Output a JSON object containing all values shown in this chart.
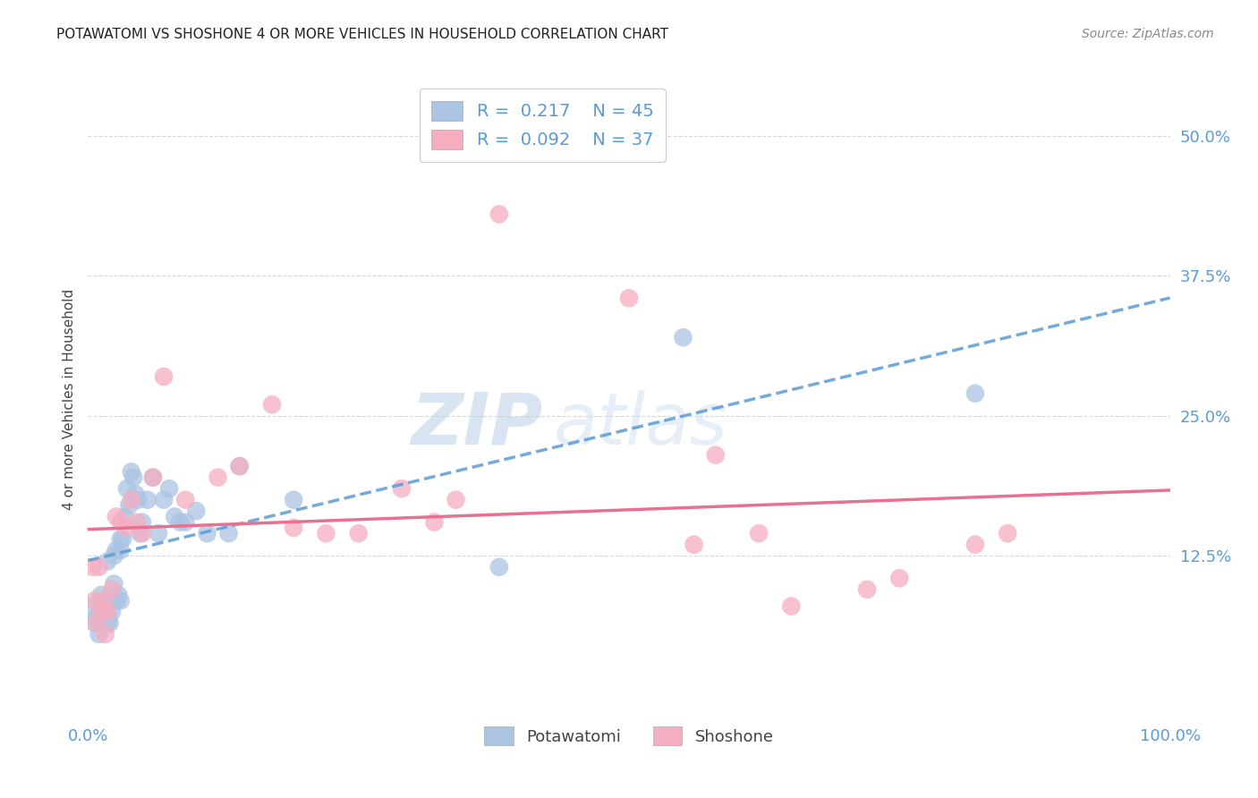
{
  "title": "POTAWATOMI VS SHOSHONE 4 OR MORE VEHICLES IN HOUSEHOLD CORRELATION CHART",
  "source": "Source: ZipAtlas.com",
  "ylabel": "4 or more Vehicles in Household",
  "xlim": [
    0,
    1.0
  ],
  "ylim": [
    -0.02,
    0.55
  ],
  "ytick_values": [
    0.125,
    0.25,
    0.375,
    0.5
  ],
  "legend_label1": "Potawatomi",
  "legend_label2": "Shoshone",
  "R1": "0.217",
  "N1": "45",
  "R2": "0.092",
  "N2": "37",
  "color1": "#aac4e2",
  "color2": "#f5adc0",
  "line_color1": "#5b9bd5",
  "line_color2": "#e87090",
  "background_color": "#ffffff",
  "grid_color": "#d8d8d8",
  "potawatomi_x": [
    0.004,
    0.006,
    0.008,
    0.01,
    0.012,
    0.014,
    0.016,
    0.018,
    0.018,
    0.02,
    0.022,
    0.024,
    0.024,
    0.026,
    0.026,
    0.028,
    0.03,
    0.03,
    0.03,
    0.032,
    0.034,
    0.036,
    0.038,
    0.04,
    0.042,
    0.044,
    0.046,
    0.048,
    0.05,
    0.055,
    0.06,
    0.065,
    0.07,
    0.075,
    0.08,
    0.085,
    0.09,
    0.1,
    0.11,
    0.13,
    0.14,
    0.19,
    0.38,
    0.55,
    0.82
  ],
  "potawatomi_y": [
    0.08,
    0.065,
    0.07,
    0.055,
    0.09,
    0.075,
    0.085,
    0.065,
    0.12,
    0.065,
    0.075,
    0.1,
    0.125,
    0.085,
    0.13,
    0.09,
    0.14,
    0.13,
    0.085,
    0.14,
    0.16,
    0.185,
    0.17,
    0.2,
    0.195,
    0.18,
    0.175,
    0.145,
    0.155,
    0.175,
    0.195,
    0.145,
    0.175,
    0.185,
    0.16,
    0.155,
    0.155,
    0.165,
    0.145,
    0.145,
    0.205,
    0.175,
    0.115,
    0.32,
    0.27
  ],
  "shoshone_x": [
    0.004,
    0.006,
    0.008,
    0.01,
    0.012,
    0.014,
    0.016,
    0.018,
    0.022,
    0.026,
    0.03,
    0.035,
    0.04,
    0.045,
    0.05,
    0.06,
    0.07,
    0.09,
    0.12,
    0.14,
    0.19,
    0.25,
    0.38,
    0.5,
    0.56,
    0.62,
    0.65,
    0.72,
    0.75,
    0.82,
    0.85,
    0.58,
    0.29,
    0.32,
    0.34,
    0.17,
    0.22
  ],
  "shoshone_y": [
    0.115,
    0.085,
    0.065,
    0.115,
    0.075,
    0.085,
    0.055,
    0.075,
    0.095,
    0.16,
    0.155,
    0.15,
    0.175,
    0.155,
    0.145,
    0.195,
    0.285,
    0.175,
    0.195,
    0.205,
    0.15,
    0.145,
    0.43,
    0.355,
    0.135,
    0.145,
    0.08,
    0.095,
    0.105,
    0.135,
    0.145,
    0.215,
    0.185,
    0.155,
    0.175,
    0.26,
    0.145
  ]
}
